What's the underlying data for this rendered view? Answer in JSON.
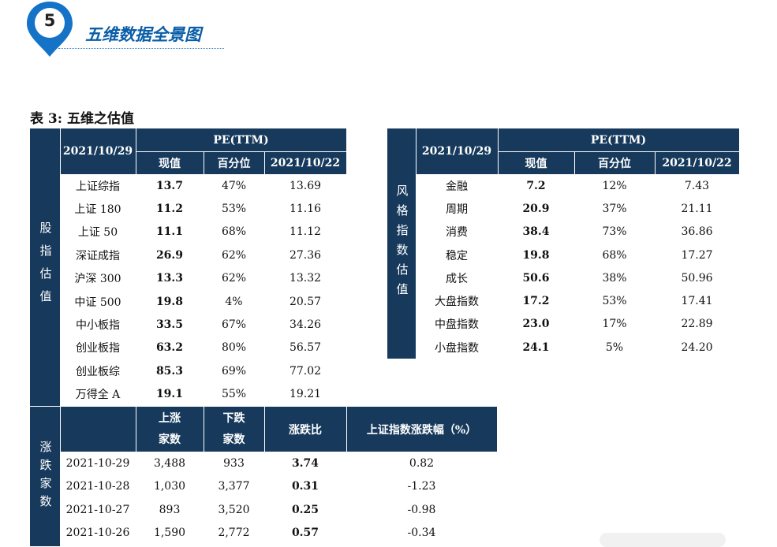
{
  "header": {
    "number": "5",
    "title": "五维数据全景图"
  },
  "caption": "表 3:  五维之估值",
  "index_table": {
    "side_label": "股指估值",
    "date": "2021/10/29",
    "pe_label": "PE(TTM)",
    "cols": [
      "现值",
      "百分位",
      "2021/10/22"
    ],
    "rows": [
      {
        "name": "上证综指",
        "value": "13.7",
        "pct": "47%",
        "prev": "13.69"
      },
      {
        "name": "上证 180",
        "value": "11.2",
        "pct": "53%",
        "prev": "11.16"
      },
      {
        "name": "上证 50",
        "value": "11.1",
        "pct": "68%",
        "prev": "11.12"
      },
      {
        "name": "深证成指",
        "value": "26.9",
        "pct": "62%",
        "prev": "27.36"
      },
      {
        "name": "沪深 300",
        "value": "13.3",
        "pct": "62%",
        "prev": "13.32"
      },
      {
        "name": "中证 500",
        "value": "19.8",
        "pct": "4%",
        "prev": "20.57"
      },
      {
        "name": "中小板指",
        "value": "33.5",
        "pct": "67%",
        "prev": "34.26"
      },
      {
        "name": "创业板指",
        "value": "63.2",
        "pct": "80%",
        "prev": "56.57"
      },
      {
        "name": "创业板综",
        "value": "85.3",
        "pct": "69%",
        "prev": "77.02"
      },
      {
        "name": "万得全 A",
        "value": "19.1",
        "pct": "55%",
        "prev": "19.21"
      }
    ]
  },
  "style_table": {
    "side_label": "风格指数估值",
    "date": "2021/10/29",
    "pe_label": "PE(TTM)",
    "cols": [
      "现值",
      "百分位",
      "2021/10/22"
    ],
    "rows": [
      {
        "name": "金融",
        "value": "7.2",
        "pct": "12%",
        "prev": "7.43"
      },
      {
        "name": "周期",
        "value": "20.9",
        "pct": "37%",
        "prev": "21.11"
      },
      {
        "name": "消费",
        "value": "38.4",
        "pct": "73%",
        "prev": "36.86"
      },
      {
        "name": "稳定",
        "value": "19.8",
        "pct": "68%",
        "prev": "17.27"
      },
      {
        "name": "成长",
        "value": "50.6",
        "pct": "38%",
        "prev": "50.96"
      },
      {
        "name": "大盘指数",
        "value": "17.2",
        "pct": "53%",
        "prev": "17.41"
      },
      {
        "name": "中盘指数",
        "value": "23.0",
        "pct": "17%",
        "prev": "22.89"
      },
      {
        "name": "小盘指数",
        "value": "24.1",
        "pct": "5%",
        "prev": "24.20"
      }
    ]
  },
  "breadth_table": {
    "side_label": "涨跌家数",
    "cols": [
      {
        "line1": "上涨",
        "line2": "家数"
      },
      {
        "line1": "下跌",
        "line2": "家数"
      },
      {
        "line1": "涨跌比",
        "line2": ""
      },
      {
        "line1": "上证指数涨跌幅（%）",
        "line2": ""
      }
    ],
    "rows": [
      {
        "date": "2021-10-29",
        "up": "3,488",
        "down": "933",
        "ratio": "3.74",
        "chg": "0.82"
      },
      {
        "date": "2021-10-28",
        "up": "1,030",
        "down": "3,377",
        "ratio": "0.31",
        "chg": "-1.23"
      },
      {
        "date": "2021-10-27",
        "up": "893",
        "down": "3,520",
        "ratio": "0.25",
        "chg": "-0.98"
      },
      {
        "date": "2021-10-26",
        "up": "1,590",
        "down": "2,772",
        "ratio": "0.57",
        "chg": "-0.34"
      }
    ]
  }
}
